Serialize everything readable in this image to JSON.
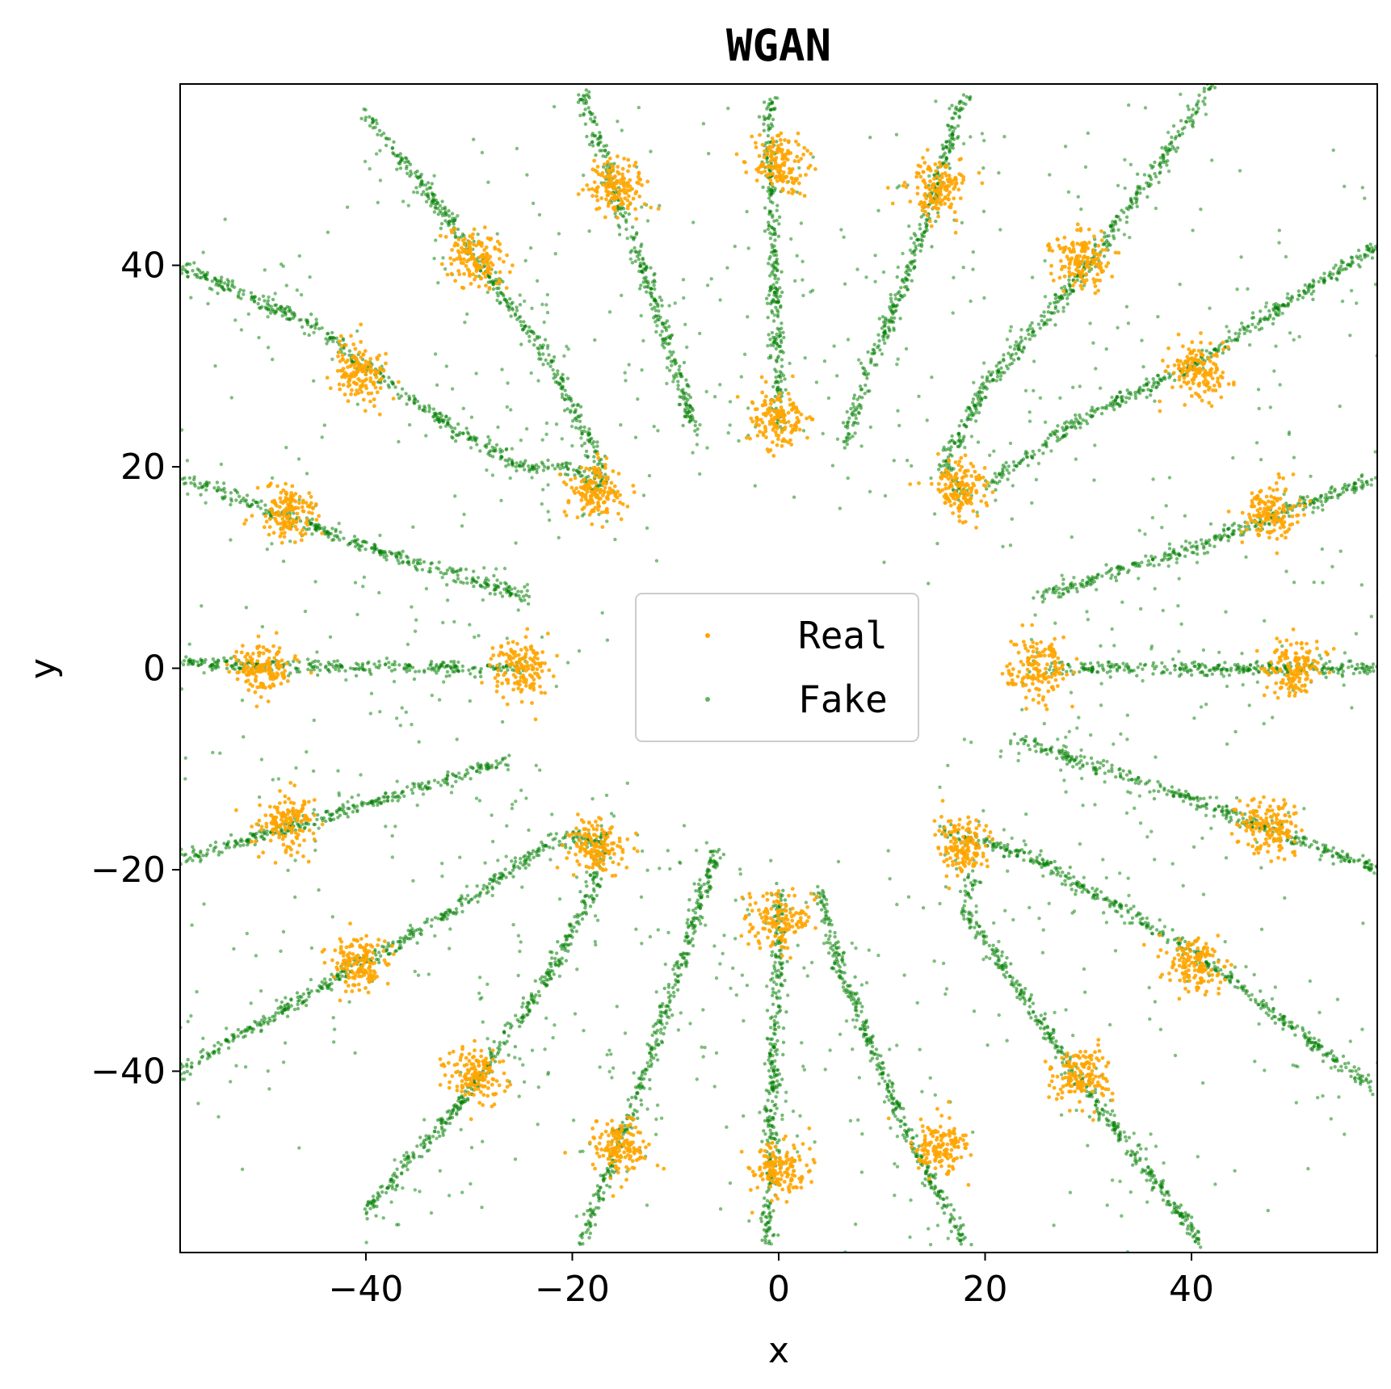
{
  "chart_data": {
    "type": "scatter",
    "title": "WGAN",
    "xlabel": "x",
    "ylabel": "y",
    "xlim": [
      -58,
      58
    ],
    "ylim": [
      -58,
      58
    ],
    "xticks": [
      -40,
      -20,
      0,
      20,
      40
    ],
    "yticks": [
      -40,
      -20,
      0,
      20,
      40
    ],
    "xtick_labels": [
      "−40",
      "−20",
      "0",
      "20",
      "40"
    ],
    "ytick_labels": [
      "−40",
      "−20",
      "0",
      "20",
      "40"
    ],
    "grid": false,
    "legend_position": "center",
    "colors": {
      "real": "#ffa500",
      "fake": "#008000"
    },
    "series": [
      {
        "name": "Real",
        "kind": "gaussian-clusters",
        "cluster_std": 1.4,
        "points_per_cluster": 150,
        "centers": [
          [
            0,
            50
          ],
          [
            15.5,
            47.6
          ],
          [
            29.4,
            40.5
          ],
          [
            40.5,
            29.4
          ],
          [
            47.6,
            15.5
          ],
          [
            50,
            0
          ],
          [
            47.6,
            -15.5
          ],
          [
            40.5,
            -29.4
          ],
          [
            29.4,
            -40.5
          ],
          [
            15.5,
            -47.6
          ],
          [
            0,
            -50
          ],
          [
            -15.5,
            -47.6
          ],
          [
            -29.4,
            -40.5
          ],
          [
            -40.5,
            -29.4
          ],
          [
            -47.6,
            -15.5
          ],
          [
            -50,
            0
          ],
          [
            -47.6,
            15.5
          ],
          [
            -40.5,
            29.4
          ],
          [
            -29.4,
            40.5
          ],
          [
            -15.5,
            47.6
          ],
          [
            0,
            25
          ],
          [
            17.7,
            17.7
          ],
          [
            25,
            0
          ],
          [
            17.7,
            -17.7
          ],
          [
            0,
            -25
          ],
          [
            -17.7,
            -17.7
          ],
          [
            -25,
            0
          ],
          [
            -17.7,
            17.7
          ]
        ]
      },
      {
        "name": "Fake",
        "kind": "streaks",
        "streak_spread": 0.35,
        "scatter_spread": 4.5,
        "streaks": [
          [
            [
              -40,
              55
            ],
            [
              -30,
              42
            ],
            [
              -22,
              30
            ],
            [
              -18,
              22
            ],
            [
              -17,
              18
            ]
          ],
          [
            [
              -19,
              57
            ],
            [
              -14,
              42
            ],
            [
              -10,
              30
            ],
            [
              -8,
              23
            ]
          ],
          [
            [
              -1,
              57
            ],
            [
              -0.5,
              40
            ],
            [
              0,
              28
            ],
            [
              0,
              24
            ]
          ],
          [
            [
              18,
              57
            ],
            [
              13,
              40
            ],
            [
              8,
              28
            ],
            [
              6.5,
              22
            ]
          ],
          [
            [
              42,
              58
            ],
            [
              30,
              40
            ],
            [
              20,
              28
            ],
            [
              16,
              20
            ],
            [
              18,
              17
            ]
          ],
          [
            [
              58,
              42
            ],
            [
              40,
              30
            ],
            [
              28,
              24
            ],
            [
              20,
              18
            ]
          ],
          [
            [
              58,
              19
            ],
            [
              40,
              12
            ],
            [
              25,
              7
            ]
          ],
          [
            [
              58,
              0
            ],
            [
              40,
              0
            ],
            [
              25,
              0
            ]
          ],
          [
            [
              58,
              -20
            ],
            [
              40,
              -13
            ],
            [
              23,
              -7
            ]
          ],
          [
            [
              58,
              -42
            ],
            [
              40,
              -28
            ],
            [
              25,
              -19
            ],
            [
              16,
              -16
            ]
          ],
          [
            [
              41,
              -57
            ],
            [
              30,
              -42
            ],
            [
              22,
              -30
            ],
            [
              18,
              -24
            ],
            [
              19,
              -20
            ]
          ],
          [
            [
              18,
              -57
            ],
            [
              12,
              -45
            ],
            [
              6,
              -30
            ],
            [
              4,
              -22
            ]
          ],
          [
            [
              -1,
              -57
            ],
            [
              -0.5,
              -40
            ],
            [
              0,
              -28
            ],
            [
              0,
              -22
            ]
          ],
          [
            [
              -19,
              -57
            ],
            [
              -14,
              -43
            ],
            [
              -9,
              -28
            ],
            [
              -6,
              -18
            ]
          ],
          [
            [
              -40,
              -54
            ],
            [
              -30,
              -42
            ],
            [
              -22,
              -30
            ],
            [
              -18,
              -22
            ],
            [
              -17,
              -16
            ]
          ],
          [
            [
              -58,
              -40
            ],
            [
              -45,
              -32
            ],
            [
              -30,
              -23
            ],
            [
              -22,
              -17
            ],
            [
              -17,
              -17
            ]
          ],
          [
            [
              -58,
              -19
            ],
            [
              -45,
              -15
            ],
            [
              -35,
              -12
            ],
            [
              -26,
              -9
            ]
          ],
          [
            [
              -58,
              0.5
            ],
            [
              -45,
              0.2
            ],
            [
              -35,
              0
            ],
            [
              -25,
              0
            ]
          ],
          [
            [
              -58,
              19
            ],
            [
              -40,
              12
            ],
            [
              -24,
              7
            ]
          ],
          [
            [
              -58,
              40
            ],
            [
              -45,
              34
            ],
            [
              -35,
              26
            ],
            [
              -25,
              20
            ],
            [
              -20,
              20
            ],
            [
              -17,
              17
            ]
          ]
        ]
      }
    ]
  }
}
